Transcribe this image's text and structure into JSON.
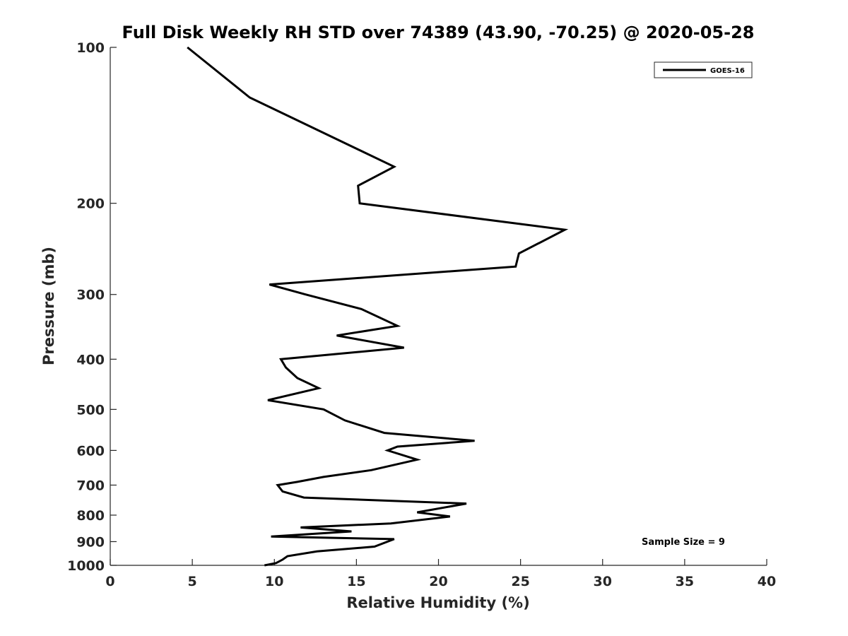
{
  "chart_data": {
    "type": "line",
    "title": "Full Disk Weekly RH STD over 74389 (43.90, -70.25) @ 2020-05-28",
    "xlabel": "Relative Humidity (%)",
    "ylabel": "Pressure (mb)",
    "xlim": [
      0,
      40
    ],
    "ylim": [
      100,
      1000
    ],
    "y_scale": "log",
    "y_reversed": true,
    "grid": false,
    "legend_position": "top-right",
    "xticks": [
      0,
      5,
      10,
      15,
      20,
      25,
      30,
      35,
      40
    ],
    "xtick_labels": [
      "0",
      "5",
      "10",
      "15",
      "20",
      "25",
      "30",
      "35",
      "40"
    ],
    "yticks": [
      100,
      200,
      300,
      400,
      500,
      600,
      700,
      800,
      900,
      1000
    ],
    "ytick_labels": [
      "100",
      "200",
      "300",
      "400",
      "500",
      "600",
      "700",
      "800",
      "900",
      "1000"
    ],
    "annotation": "Sample Size = 9",
    "series": [
      {
        "name": "GOES-16",
        "color": "#000000",
        "points": [
          [
            4.7,
            100
          ],
          [
            8.5,
            125
          ],
          [
            17.3,
            170
          ],
          [
            15.1,
            185
          ],
          [
            15.2,
            200
          ],
          [
            27.7,
            225
          ],
          [
            24.9,
            250
          ],
          [
            24.7,
            265
          ],
          [
            9.7,
            287
          ],
          [
            11.9,
            300
          ],
          [
            15.3,
            320
          ],
          [
            17.5,
            345
          ],
          [
            13.8,
            360
          ],
          [
            17.9,
            380
          ],
          [
            10.4,
            400
          ],
          [
            10.7,
            415
          ],
          [
            11.4,
            435
          ],
          [
            12.7,
            455
          ],
          [
            9.6,
            480
          ],
          [
            13.0,
            500
          ],
          [
            14.3,
            525
          ],
          [
            16.7,
            555
          ],
          [
            22.2,
            575
          ],
          [
            17.5,
            590
          ],
          [
            16.9,
            600
          ],
          [
            18.7,
            625
          ],
          [
            15.9,
            655
          ],
          [
            13.0,
            675
          ],
          [
            11.4,
            690
          ],
          [
            10.2,
            700
          ],
          [
            10.5,
            720
          ],
          [
            11.8,
            740
          ],
          [
            21.7,
            760
          ],
          [
            18.7,
            790
          ],
          [
            20.7,
            805
          ],
          [
            17.1,
            830
          ],
          [
            11.6,
            845
          ],
          [
            14.7,
            860
          ],
          [
            9.8,
            880
          ],
          [
            17.3,
            890
          ],
          [
            16.1,
            920
          ],
          [
            12.6,
            940
          ],
          [
            10.8,
            960
          ],
          [
            10.5,
            975
          ],
          [
            10.1,
            990
          ],
          [
            9.4,
            1000
          ]
        ]
      }
    ]
  }
}
